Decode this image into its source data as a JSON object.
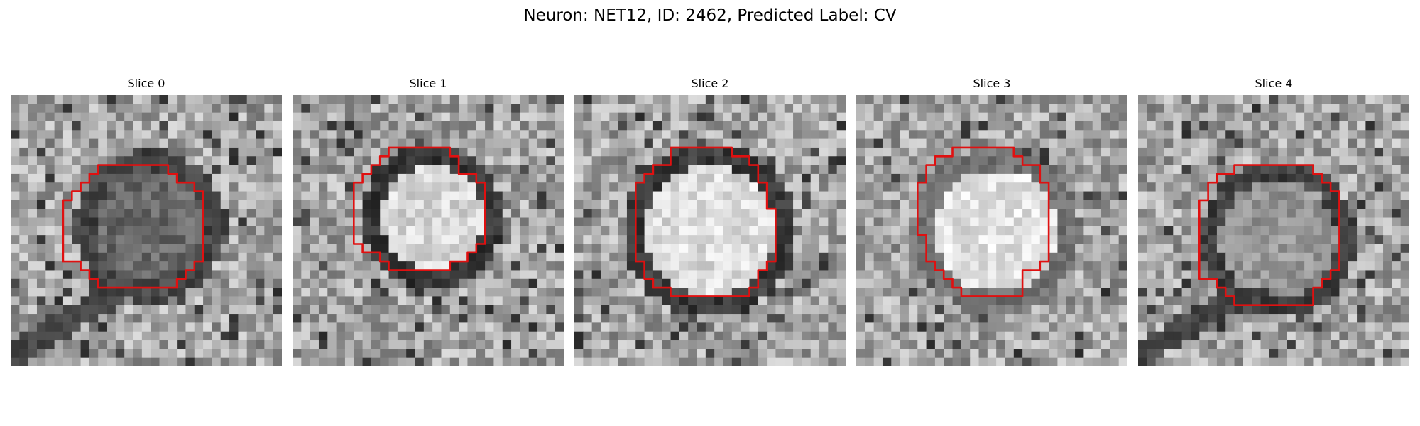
{
  "figure": {
    "title": "Neuron: NET12, ID: 2462, Predicted Label: CV"
  },
  "panels": [
    {
      "title": "Slice 0",
      "image": "grayscale EM crop with red contour around a round vesicle-like structure",
      "contour_color": "#e01010"
    },
    {
      "title": "Slice 1",
      "image": "grayscale EM crop with red contour around a bright round structure",
      "contour_color": "#e01010"
    },
    {
      "title": "Slice 2",
      "image": "grayscale EM crop with red contour around a bright round structure with dark membrane ring",
      "contour_color": "#e01010"
    },
    {
      "title": "Slice 3",
      "image": "grayscale EM crop with red contour around a bright round structure",
      "contour_color": "#e01010"
    },
    {
      "title": "Slice 4",
      "image": "grayscale EM crop with red contour around a gray round structure",
      "contour_color": "#e01010"
    }
  ],
  "colors": {
    "contour": "#e01010"
  }
}
